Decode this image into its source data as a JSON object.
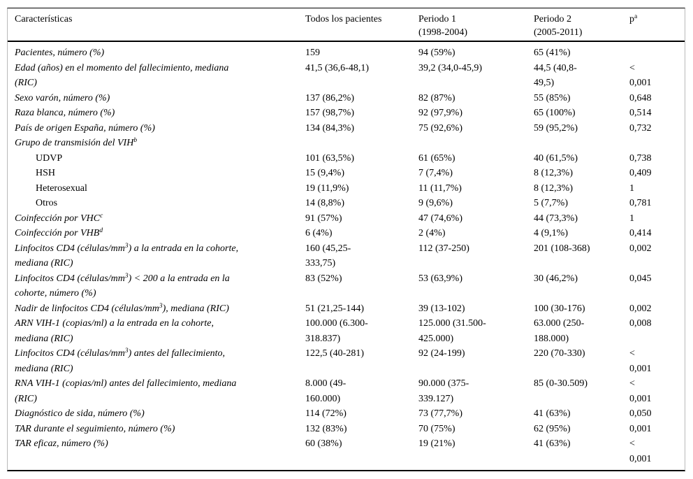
{
  "page": {
    "background_color": "#ffffff",
    "text_color": "#000000",
    "rule_color": "#000000",
    "side_border_color": "#b9b9b9"
  },
  "table": {
    "columns": [
      {
        "label": "Características"
      },
      {
        "label": "Todos los pacientes"
      },
      {
        "label": "Periodo 1\n(1998-2004)"
      },
      {
        "label": "Periodo 2\n(2005-2011)"
      },
      {
        "label": "p^{a}"
      }
    ],
    "rows": [
      {
        "label": "Pacientes, número (%)",
        "italic": true,
        "indent": false,
        "values": [
          "159",
          "94 (59%)",
          "65 (41%)",
          ""
        ]
      },
      {
        "label": "Edad (años) en el momento del fallecimiento, mediana\n(RIC)",
        "italic": true,
        "indent": false,
        "values": [
          "41,5 (36,6-48,1)",
          "39,2 (34,0-45,9)",
          "44,5 (40,8-\n49,5)",
          "<\n0,001"
        ]
      },
      {
        "label": "Sexo varón, número (%)",
        "italic": true,
        "indent": false,
        "values": [
          "137 (86,2%)",
          "82 (87%)",
          "55 (85%)",
          "0,648"
        ]
      },
      {
        "label": "Raza blanca, número (%)",
        "italic": true,
        "indent": false,
        "values": [
          "157 (98,7%)",
          "92 (97,9%)",
          "65 (100%)",
          "0,514"
        ]
      },
      {
        "label": "País de origen España, número (%)",
        "italic": true,
        "indent": false,
        "values": [
          "134 (84,3%)",
          "75 (92,6%)",
          "59 (95,2%)",
          "0,732"
        ]
      },
      {
        "label": "Grupo de transmisión del VIH^{b}",
        "italic": true,
        "indent": false,
        "values": [
          "",
          "",
          "",
          ""
        ]
      },
      {
        "label": "UDVP",
        "italic": false,
        "indent": true,
        "values": [
          "101 (63,5%)",
          "61 (65%)",
          "40 (61,5%)",
          "0,738"
        ]
      },
      {
        "label": "HSH",
        "italic": false,
        "indent": true,
        "values": [
          "15 (9,4%)",
          "7 (7,4%)",
          "8 (12,3%)",
          "0,409"
        ]
      },
      {
        "label": "Heterosexual",
        "italic": false,
        "indent": true,
        "values": [
          "19 (11,9%)",
          "11 (11,7%)",
          "8 (12,3%)",
          "1"
        ]
      },
      {
        "label": "Otros",
        "italic": false,
        "indent": true,
        "values": [
          "14 (8,8%)",
          "9 (9,6%)",
          "5 (7,7%)",
          "0,781"
        ]
      },
      {
        "label": "Coinfección por VHC^{c}",
        "italic": true,
        "indent": false,
        "values": [
          "91 (57%)",
          "47 (74,6%)",
          "44 (73,3%)",
          "1"
        ]
      },
      {
        "label": "Coinfección por VHB^{d}",
        "italic": true,
        "indent": false,
        "values": [
          "6 (4%)",
          "2 (4%)",
          "4 (9,1%)",
          "0,414"
        ]
      },
      {
        "label": "Linfocitos CD4 (células/mm^{3}) a la entrada en la cohorte,\nmediana (RIC)",
        "italic": true,
        "indent": false,
        "values": [
          "160 (45,25-\n333,75)",
          "112 (37-250)",
          "201 (108-368)",
          "0,002"
        ]
      },
      {
        "label": "Linfocitos CD4 (células/mm^{3}) < 200 a la entrada en la\ncohorte, número (%)",
        "italic": true,
        "indent": false,
        "values": [
          "83 (52%)",
          "53 (63,9%)",
          "30 (46,2%)",
          "0,045"
        ]
      },
      {
        "label": "Nadir de linfocitos CD4 (células/mm^{3}), mediana (RIC)",
        "italic": true,
        "indent": false,
        "values": [
          "51 (21,25-144)",
          "39 (13-102)",
          "100 (30-176)",
          "0,002"
        ]
      },
      {
        "label": "ARN VIH-1 (copias/ml) a la entrada en la cohorte,\nmediana (RIC)",
        "italic": true,
        "indent": false,
        "values": [
          "100.000 (6.300-\n318.837)",
          "125.000 (31.500-\n425.000)",
          "63.000 (250-\n188.000)",
          "0,008"
        ]
      },
      {
        "label": "Linfocitos CD4 (células/mm^{3}) antes del fallecimiento,\nmediana (RIC)",
        "italic": true,
        "indent": false,
        "values": [
          "122,5 (40-281)",
          "92 (24-199)",
          "220 (70-330)",
          "<\n0,001"
        ]
      },
      {
        "label": "RNA VIH-1 (copias/ml) antes del fallecimiento, mediana\n(RIC)",
        "italic": true,
        "indent": false,
        "values": [
          "8.000 (49-\n160.000)",
          "90.000 (375-\n339.127)",
          "85 (0-30.509)",
          "<\n0,001"
        ]
      },
      {
        "label": "Diagnóstico de sida, número (%)",
        "italic": true,
        "indent": false,
        "values": [
          "114 (72%)",
          "73 (77,7%)",
          "41 (63%)",
          "0,050"
        ]
      },
      {
        "label": "TAR durante el seguimiento, número (%)",
        "italic": true,
        "indent": false,
        "values": [
          "132 (83%)",
          "70 (75%)",
          "62 (95%)",
          "0,001"
        ]
      },
      {
        "label": "TAR eficaz, número (%)",
        "italic": true,
        "indent": false,
        "values": [
          "60 (38%)",
          "19 (21%)",
          "41 (63%)",
          "<\n0,001"
        ]
      }
    ]
  }
}
